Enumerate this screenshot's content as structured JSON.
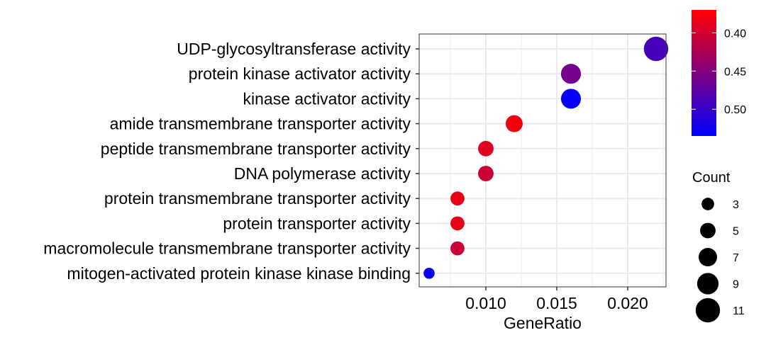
{
  "chart_data": {
    "type": "scatter",
    "title": "",
    "xlabel": "GeneRatio",
    "ylabel": "",
    "xlim": [
      0.0053,
      0.0227
    ],
    "x_ticks": [
      0.01,
      0.015,
      0.02
    ],
    "x_tick_labels": [
      "0.010",
      "0.015",
      "0.020"
    ],
    "grid": true,
    "categories": [
      "UDP-glycosyltransferase activity",
      "protein kinase activator activity",
      "kinase activator activity",
      "amide transmembrane transporter activity",
      "peptide transmembrane transporter activity",
      "DNA polymerase activity",
      "protein transmembrane transporter activity",
      "protein transporter activity",
      "macromolecule transmembrane transporter activity",
      "mitogen-activated protein kinase kinase binding"
    ],
    "points": [
      {
        "category": "UDP-glycosyltransferase activity",
        "x": 0.022,
        "count": 11,
        "p_adjust": 0.49
      },
      {
        "category": "protein kinase activator activity",
        "x": 0.016,
        "count": 8,
        "p_adjust": 0.46
      },
      {
        "category": "kinase activator activity",
        "x": 0.016,
        "count": 8,
        "p_adjust": 0.53
      },
      {
        "category": "amide transmembrane transporter activity",
        "x": 0.012,
        "count": 6,
        "p_adjust": 0.38
      },
      {
        "category": "peptide transmembrane transporter activity",
        "x": 0.01,
        "count": 5,
        "p_adjust": 0.39
      },
      {
        "category": "DNA polymerase activity",
        "x": 0.01,
        "count": 5,
        "p_adjust": 0.405
      },
      {
        "category": "protein transmembrane transporter activity",
        "x": 0.008,
        "count": 4,
        "p_adjust": 0.385
      },
      {
        "category": "protein transporter activity",
        "x": 0.008,
        "count": 4,
        "p_adjust": 0.385
      },
      {
        "category": "macromolecule transmembrane transporter activity",
        "x": 0.008,
        "count": 4,
        "p_adjust": 0.405
      },
      {
        "category": "mitogen-activated protein kinase kinase binding",
        "x": 0.006,
        "count": 2,
        "p_adjust": 0.53
      }
    ],
    "color_legend": {
      "title": "",
      "range": [
        0.37,
        0.535
      ],
      "ticks": [
        0.4,
        0.45,
        0.5
      ],
      "tick_labels": [
        "0.40",
        "0.45",
        "0.50"
      ],
      "low_color": "#FF0000",
      "high_color": "#0000FF",
      "reversed": true
    },
    "size_legend": {
      "title": "Count",
      "values": [
        3,
        5,
        7,
        9,
        11
      ],
      "labels": [
        "3",
        "5",
        "7",
        "9",
        "11"
      ]
    },
    "colors": {
      "panel_border": "#333333",
      "grid": "#ebebeb",
      "tick": "#333333",
      "legend_point": "#000000"
    }
  }
}
